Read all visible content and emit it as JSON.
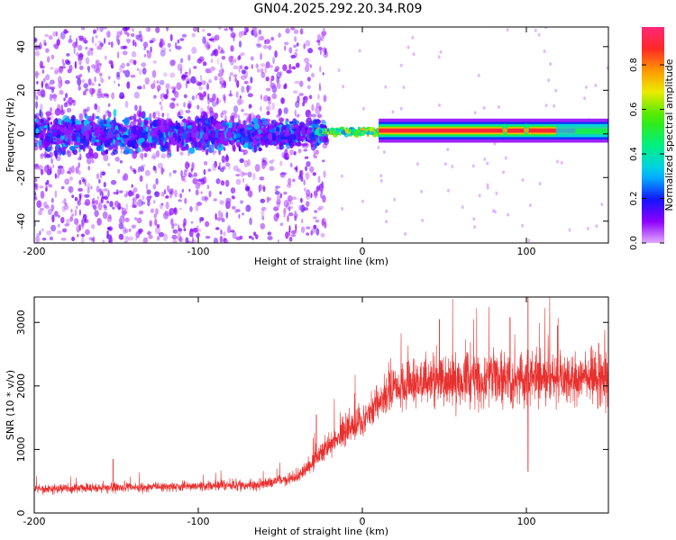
{
  "title": "GN04.2025.292.20.34.R09",
  "colors": {
    "snr_line": "#e8302e",
    "axis": "#000000",
    "spectrum_low": "#8a00ff",
    "spectrum_high": "#ff1a3a"
  },
  "chart_data": [
    {
      "type": "heatmap",
      "name": "spectrogram",
      "xlabel": "Height of straight line (km)",
      "ylabel": "Frequency (Hz)",
      "xlim": [
        -200,
        150
      ],
      "ylim": [
        -50,
        49
      ],
      "x_ticks": [
        -200,
        -100,
        0,
        100
      ],
      "y_ticks": [
        -40,
        -20,
        0,
        20,
        40
      ],
      "colorbar": {
        "label": "Normalized spectral amplitude",
        "range": [
          0,
          0.97
        ],
        "ticks": [
          0.0,
          0.2,
          0.4,
          0.6,
          0.8
        ]
      },
      "features": [
        {
          "segment": "scattered noise",
          "x": [
            -200,
            -25
          ],
          "frequency_spread": [
            -50,
            49
          ],
          "amplitude": 0.1
        },
        {
          "segment": "noisy band",
          "x": [
            -200,
            -25
          ],
          "frequency_center": 0,
          "amplitude": 0.3
        },
        {
          "segment": "transition",
          "x": [
            -25,
            15
          ],
          "frequency_center": 1,
          "amplitude": 0.6
        },
        {
          "segment": "strong line",
          "x": [
            15,
            150
          ],
          "frequency_center": 1.5,
          "amplitude": 0.95
        }
      ]
    },
    {
      "type": "line",
      "name": "snr",
      "xlabel": "Height of straight line (km)",
      "ylabel": "SNR (10 * v/v)",
      "xlim": [
        -200,
        150
      ],
      "ylim": [
        0,
        3400
      ],
      "x_ticks": [
        -200,
        -100,
        0,
        100
      ],
      "y_ticks": [
        0,
        1000,
        2000,
        3000
      ],
      "trend": {
        "x": [
          -200,
          -150,
          -100,
          -60,
          -40,
          -30,
          -20,
          -10,
          0,
          10,
          20,
          30,
          50,
          100,
          150
        ],
        "y": [
          380,
          400,
          420,
          450,
          560,
          820,
          1100,
          1300,
          1450,
          1750,
          1950,
          2050,
          2100,
          2130,
          2130
        ]
      },
      "spikes": [
        {
          "x": -152,
          "y": 850
        },
        {
          "x": -28,
          "y": 1550
        },
        {
          "x": 47,
          "y": 3050
        },
        {
          "x": 90,
          "y": 3080
        },
        {
          "x": 101,
          "y": 3400
        },
        {
          "x": 101,
          "y": 650
        },
        {
          "x": 119,
          "y": 2950
        }
      ]
    }
  ]
}
